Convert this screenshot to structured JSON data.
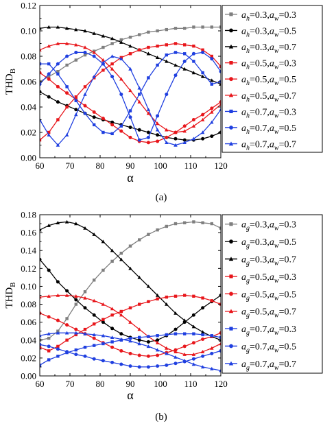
{
  "chart_data": [
    {
      "type": "line",
      "panel_label": "(a)",
      "xlabel": "α",
      "ylabel_main": "THD",
      "ylabel_sub": "B",
      "xlim": [
        60,
        120
      ],
      "ylim": [
        0,
        0.12
      ],
      "x_ticks": [
        "60",
        "70",
        "80",
        "90",
        "100",
        "110",
        "120"
      ],
      "y_ticks": [
        "0.00",
        "0.02",
        "0.04",
        "0.06",
        "0.08",
        "0.10",
        "0.12"
      ],
      "y_tick_values": [
        0,
        0.02,
        0.04,
        0.06,
        0.08,
        0.1,
        0.12
      ],
      "x_tick_values": [
        60,
        70,
        80,
        90,
        100,
        110,
        120
      ],
      "legend_var1": "h",
      "legend_placement": "right",
      "grid": false,
      "series": [
        {
          "name": "=0.3,",
          "a1": "0.3",
          "a2": "0.3",
          "color": "#7f7f7f",
          "marker": "square",
          "x": [
            60,
            63,
            66,
            69,
            72,
            75,
            78,
            81,
            84,
            87,
            90,
            93,
            96,
            99,
            102,
            105,
            108,
            111,
            114,
            117,
            120
          ],
          "values": [
            0.06,
            0.064,
            0.068,
            0.073,
            0.077,
            0.081,
            0.084,
            0.087,
            0.09,
            0.093,
            0.095,
            0.097,
            0.099,
            0.1,
            0.101,
            0.102,
            0.102,
            0.103,
            0.103,
            0.103,
            0.103
          ]
        },
        {
          "name": "=0.3,",
          "a1": "0.3",
          "a2": "0.5",
          "color": "#000000",
          "marker": "circle",
          "x": [
            60,
            63,
            66,
            69,
            72,
            75,
            78,
            81,
            84,
            87,
            90,
            93,
            96,
            99,
            102,
            105,
            108,
            111,
            114,
            117,
            120
          ],
          "values": [
            0.052,
            0.048,
            0.044,
            0.041,
            0.038,
            0.035,
            0.032,
            0.03,
            0.028,
            0.026,
            0.024,
            0.022,
            0.02,
            0.018,
            0.016,
            0.015,
            0.014,
            0.014,
            0.015,
            0.017,
            0.02
          ]
        },
        {
          "name": "=0.3,",
          "a1": "0.3",
          "a2": "0.7",
          "color": "#000000",
          "marker": "triangle",
          "x": [
            60,
            63,
            66,
            69,
            72,
            75,
            78,
            81,
            84,
            87,
            90,
            93,
            96,
            99,
            102,
            105,
            108,
            111,
            114,
            117,
            120
          ],
          "values": [
            0.102,
            0.103,
            0.103,
            0.102,
            0.101,
            0.1,
            0.098,
            0.096,
            0.094,
            0.091,
            0.088,
            0.085,
            0.082,
            0.079,
            0.076,
            0.073,
            0.07,
            0.067,
            0.064,
            0.061,
            0.058
          ]
        },
        {
          "name": "=0.5,",
          "a1": "0.5",
          "a2": "0.3",
          "color": "#e8161b",
          "marker": "square",
          "x": [
            60,
            63,
            66,
            69,
            72,
            75,
            78,
            81,
            84,
            87,
            90,
            93,
            96,
            99,
            102,
            105,
            108,
            111,
            114,
            117,
            120
          ],
          "values": [
            0.014,
            0.02,
            0.03,
            0.04,
            0.048,
            0.056,
            0.063,
            0.069,
            0.074,
            0.079,
            0.082,
            0.085,
            0.087,
            0.088,
            0.089,
            0.09,
            0.089,
            0.088,
            0.085,
            0.08,
            0.072
          ]
        },
        {
          "name": "=0.5,",
          "a1": "0.5",
          "a2": "0.5",
          "color": "#e8161b",
          "marker": "circle",
          "x": [
            60,
            63,
            66,
            69,
            72,
            75,
            78,
            81,
            84,
            87,
            90,
            93,
            96,
            99,
            102,
            105,
            108,
            111,
            114,
            117,
            120
          ],
          "values": [
            0.067,
            0.062,
            0.056,
            0.051,
            0.046,
            0.041,
            0.036,
            0.031,
            0.026,
            0.021,
            0.016,
            0.013,
            0.012,
            0.013,
            0.016,
            0.02,
            0.025,
            0.03,
            0.034,
            0.039,
            0.044
          ]
        },
        {
          "name": "=0.5,",
          "a1": "0.5",
          "a2": "0.7",
          "color": "#e8161b",
          "marker": "triangle",
          "x": [
            60,
            63,
            66,
            69,
            72,
            75,
            78,
            81,
            84,
            87,
            90,
            93,
            96,
            99,
            102,
            105,
            108,
            111,
            114,
            117,
            120
          ],
          "values": [
            0.085,
            0.088,
            0.09,
            0.09,
            0.089,
            0.087,
            0.083,
            0.077,
            0.07,
            0.062,
            0.053,
            0.044,
            0.035,
            0.027,
            0.022,
            0.02,
            0.021,
            0.025,
            0.03,
            0.036,
            0.042
          ]
        },
        {
          "name": "=0.7,",
          "a1": "0.7",
          "a2": "0.3",
          "color": "#1f3fe0",
          "marker": "square",
          "x": [
            60,
            63,
            66,
            69,
            72,
            75,
            78,
            81,
            84,
            87,
            90,
            93,
            96,
            99,
            102,
            105,
            108,
            111,
            114,
            117,
            120
          ],
          "values": [
            0.074,
            0.074,
            0.066,
            0.056,
            0.045,
            0.035,
            0.026,
            0.02,
            0.019,
            0.025,
            0.037,
            0.05,
            0.063,
            0.073,
            0.081,
            0.083,
            0.082,
            0.076,
            0.067,
            0.058,
            0.06
          ]
        },
        {
          "name": "=0.7,",
          "a1": "0.7",
          "a2": "0.5",
          "color": "#1f3fe0",
          "marker": "circle",
          "x": [
            60,
            63,
            66,
            69,
            72,
            75,
            78,
            81,
            84,
            87,
            90,
            93,
            96,
            99,
            102,
            105,
            108,
            111,
            114,
            117,
            120
          ],
          "values": [
            0.058,
            0.066,
            0.074,
            0.08,
            0.083,
            0.083,
            0.08,
            0.074,
            0.064,
            0.05,
            0.032,
            0.014,
            0.016,
            0.033,
            0.05,
            0.065,
            0.076,
            0.082,
            0.083,
            0.078,
            0.068
          ]
        },
        {
          "name": "=0.7,",
          "a1": "0.7",
          "a2": "0.7",
          "color": "#1f3fe0",
          "marker": "triangle",
          "x": [
            60,
            63,
            66,
            69,
            72,
            75,
            78,
            81,
            84,
            87,
            90,
            93,
            96,
            99,
            102,
            105,
            108,
            111,
            114,
            117,
            120
          ],
          "values": [
            0.03,
            0.018,
            0.01,
            0.018,
            0.034,
            0.05,
            0.064,
            0.075,
            0.08,
            0.078,
            0.07,
            0.055,
            0.038,
            0.022,
            0.012,
            0.01,
            0.012,
            0.015,
            0.02,
            0.028,
            0.038
          ]
        }
      ]
    },
    {
      "type": "line",
      "panel_label": "(b)",
      "xlabel": "α",
      "ylabel_main": "THD",
      "ylabel_sub": "B",
      "xlim": [
        60,
        120
      ],
      "ylim": [
        0,
        0.18
      ],
      "x_ticks": [
        "60",
        "70",
        "80",
        "90",
        "100",
        "110",
        "120"
      ],
      "y_ticks": [
        "0.00",
        "0.02",
        "0.04",
        "0.06",
        "0.08",
        "0.10",
        "0.12",
        "0.14",
        "0.16",
        "0.18"
      ],
      "y_tick_values": [
        0,
        0.02,
        0.04,
        0.06,
        0.08,
        0.1,
        0.12,
        0.14,
        0.16,
        0.18
      ],
      "x_tick_values": [
        60,
        70,
        80,
        90,
        100,
        110,
        120
      ],
      "legend_var1": "g",
      "legend_placement": "right",
      "grid": false,
      "series": [
        {
          "name": "=0.3,",
          "a1": "0.3",
          "a2": "0.3",
          "color": "#7f7f7f",
          "marker": "square",
          "x": [
            60,
            63,
            66,
            69,
            72,
            75,
            78,
            81,
            84,
            87,
            90,
            93,
            96,
            99,
            102,
            105,
            108,
            111,
            114,
            117,
            120
          ],
          "values": [
            0.04,
            0.042,
            0.05,
            0.064,
            0.08,
            0.094,
            0.107,
            0.118,
            0.128,
            0.137,
            0.145,
            0.152,
            0.158,
            0.163,
            0.167,
            0.17,
            0.171,
            0.172,
            0.171,
            0.17,
            0.165
          ]
        },
        {
          "name": "=0.3,",
          "a1": "0.3",
          "a2": "0.5",
          "color": "#000000",
          "marker": "circle",
          "x": [
            60,
            63,
            66,
            69,
            72,
            75,
            78,
            81,
            84,
            87,
            90,
            93,
            96,
            99,
            102,
            105,
            108,
            111,
            114,
            117,
            120
          ],
          "values": [
            0.13,
            0.118,
            0.105,
            0.095,
            0.085,
            0.076,
            0.068,
            0.06,
            0.053,
            0.047,
            0.043,
            0.04,
            0.038,
            0.04,
            0.045,
            0.052,
            0.06,
            0.068,
            0.076,
            0.083,
            0.09
          ]
        },
        {
          "name": "=0.3,",
          "a1": "0.3",
          "a2": "0.7",
          "color": "#000000",
          "marker": "triangle",
          "x": [
            60,
            63,
            66,
            69,
            72,
            75,
            78,
            81,
            84,
            87,
            90,
            93,
            96,
            99,
            102,
            105,
            108,
            111,
            114,
            117,
            120
          ],
          "values": [
            0.163,
            0.168,
            0.171,
            0.172,
            0.17,
            0.165,
            0.158,
            0.15,
            0.14,
            0.13,
            0.12,
            0.11,
            0.1,
            0.09,
            0.08,
            0.07,
            0.062,
            0.055,
            0.049,
            0.044,
            0.04
          ]
        },
        {
          "name": "=0.5,",
          "a1": "0.5",
          "a2": "0.3",
          "color": "#e8161b",
          "marker": "square",
          "x": [
            60,
            63,
            66,
            69,
            72,
            75,
            78,
            81,
            84,
            87,
            90,
            93,
            96,
            99,
            102,
            105,
            108,
            111,
            114,
            117,
            120
          ],
          "values": [
            0.032,
            0.028,
            0.033,
            0.04,
            0.046,
            0.052,
            0.058,
            0.063,
            0.068,
            0.072,
            0.076,
            0.08,
            0.083,
            0.086,
            0.088,
            0.089,
            0.09,
            0.089,
            0.087,
            0.084,
            0.08
          ]
        },
        {
          "name": "=0.5,",
          "a1": "0.5",
          "a2": "0.5",
          "color": "#e8161b",
          "marker": "circle",
          "x": [
            60,
            63,
            66,
            69,
            72,
            75,
            78,
            81,
            84,
            87,
            90,
            93,
            96,
            99,
            102,
            105,
            108,
            111,
            114,
            117,
            120
          ],
          "values": [
            0.07,
            0.066,
            0.062,
            0.057,
            0.052,
            0.047,
            0.042,
            0.037,
            0.032,
            0.028,
            0.025,
            0.023,
            0.022,
            0.023,
            0.026,
            0.029,
            0.033,
            0.037,
            0.041,
            0.044,
            0.048
          ]
        },
        {
          "name": "=0.5,",
          "a1": "0.5",
          "a2": "0.7",
          "color": "#e8161b",
          "marker": "triangle",
          "x": [
            60,
            63,
            66,
            69,
            72,
            75,
            78,
            81,
            84,
            87,
            90,
            93,
            96,
            99,
            102,
            105,
            108,
            111,
            114,
            117,
            120
          ],
          "values": [
            0.088,
            0.089,
            0.09,
            0.09,
            0.089,
            0.087,
            0.084,
            0.08,
            0.075,
            0.068,
            0.06,
            0.052,
            0.044,
            0.037,
            0.031,
            0.027,
            0.024,
            0.024,
            0.027,
            0.031,
            0.036
          ]
        },
        {
          "name": "=0.7,",
          "a1": "0.7",
          "a2": "0.3",
          "color": "#1f3fe0",
          "marker": "square",
          "x": [
            60,
            63,
            66,
            69,
            72,
            75,
            78,
            81,
            84,
            87,
            90,
            93,
            96,
            99,
            102,
            105,
            108,
            111,
            114,
            117,
            120
          ],
          "values": [
            0.012,
            0.018,
            0.022,
            0.026,
            0.029,
            0.032,
            0.034,
            0.036,
            0.038,
            0.04,
            0.042,
            0.043,
            0.044,
            0.045,
            0.046,
            0.047,
            0.047,
            0.047,
            0.046,
            0.045,
            0.043
          ]
        },
        {
          "name": "=0.7,",
          "a1": "0.7",
          "a2": "0.5",
          "color": "#1f3fe0",
          "marker": "circle",
          "x": [
            60,
            63,
            66,
            69,
            72,
            75,
            78,
            81,
            84,
            87,
            90,
            93,
            96,
            99,
            102,
            105,
            108,
            111,
            114,
            117,
            120
          ],
          "values": [
            0.035,
            0.033,
            0.03,
            0.027,
            0.024,
            0.022,
            0.019,
            0.017,
            0.015,
            0.013,
            0.011,
            0.01,
            0.01,
            0.011,
            0.012,
            0.014,
            0.016,
            0.019,
            0.022,
            0.025,
            0.028
          ]
        },
        {
          "name": "=0.7,",
          "a1": "0.7",
          "a2": "0.7",
          "color": "#1f3fe0",
          "marker": "triangle",
          "x": [
            60,
            63,
            66,
            69,
            72,
            75,
            78,
            81,
            84,
            87,
            90,
            93,
            96,
            99,
            102,
            105,
            108,
            111,
            114,
            117,
            120
          ],
          "values": [
            0.045,
            0.047,
            0.048,
            0.048,
            0.048,
            0.047,
            0.046,
            0.045,
            0.043,
            0.041,
            0.039,
            0.036,
            0.033,
            0.029,
            0.025,
            0.021,
            0.017,
            0.013,
            0.01,
            0.008,
            0.006
          ]
        }
      ]
    }
  ]
}
